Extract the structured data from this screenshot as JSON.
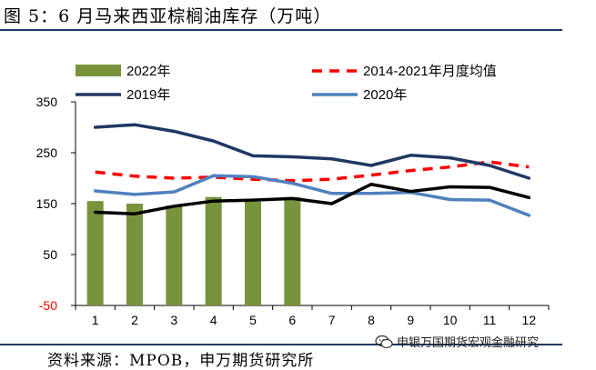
{
  "title": "图 5：6 月马来西亚棕榈油库存（万吨）",
  "source": "资料来源：MPOB，申万期货研究所",
  "watermark": "申银万国期货宏观金融研究",
  "watermark_icon": "wechat-icon",
  "chart_data": {
    "type": "bar",
    "categories": [
      "1",
      "2",
      "3",
      "4",
      "5",
      "6",
      "7",
      "8",
      "9",
      "10",
      "11",
      "12"
    ],
    "ylim": [
      -50,
      350
    ],
    "yticks": [
      -50,
      50,
      150,
      250,
      350
    ],
    "ytick_labels": [
      "-50",
      "50",
      "150",
      "250",
      "350"
    ],
    "grid": false,
    "legend_position": "top",
    "series": [
      {
        "name": "2022年",
        "type": "bar",
        "color": "#77933c",
        "values": [
          155,
          150,
          146,
          163,
          154,
          163,
          null,
          null,
          null,
          null,
          null,
          null
        ]
      },
      {
        "name": "2014-2021年月度均值",
        "type": "line",
        "style": "dashed",
        "color": "#ff0000",
        "values": [
          212,
          204,
          200,
          202,
          198,
          195,
          198,
          206,
          215,
          222,
          232,
          222
        ]
      },
      {
        "name": "2019年",
        "type": "line",
        "color": "#1f3864",
        "values": [
          300,
          305,
          292,
          273,
          244,
          242,
          238,
          225,
          245,
          240,
          225,
          200
        ]
      },
      {
        "name": "2020年",
        "type": "line",
        "color": "#4f81bd",
        "values": [
          175,
          168,
          173,
          205,
          203,
          190,
          170,
          170,
          172,
          158,
          157,
          127
        ]
      },
      {
        "name": "",
        "type": "line",
        "color": "#000000",
        "values": [
          133,
          130,
          145,
          155,
          157,
          160,
          150,
          188,
          174,
          183,
          182,
          162
        ]
      }
    ]
  }
}
